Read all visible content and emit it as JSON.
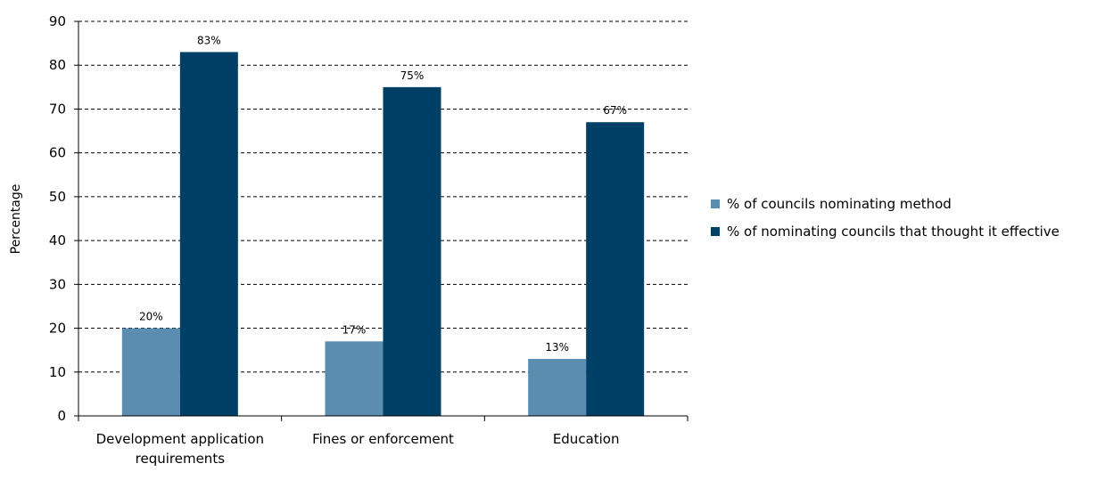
{
  "chart_data": {
    "type": "bar",
    "title": "",
    "xlabel": "",
    "ylabel": "Percentage",
    "ylim": [
      0,
      90
    ],
    "yticks": [
      0,
      10,
      20,
      30,
      40,
      50,
      60,
      70,
      80,
      90
    ],
    "grid": "horizontal dashed",
    "legend_position": "right",
    "categories": [
      "Development application requirements",
      "Fines or enforcement",
      "Education"
    ],
    "series": [
      {
        "name": "% of councils nominating method",
        "color": "#5b8db0",
        "values": [
          20,
          17,
          13
        ],
        "labels": [
          "20%",
          "17%",
          "13%"
        ]
      },
      {
        "name": "% of nominating councils that thought it effective",
        "color": "#003f66",
        "values": [
          83,
          75,
          67
        ],
        "labels": [
          "83%",
          "75%",
          "67%"
        ]
      }
    ]
  }
}
